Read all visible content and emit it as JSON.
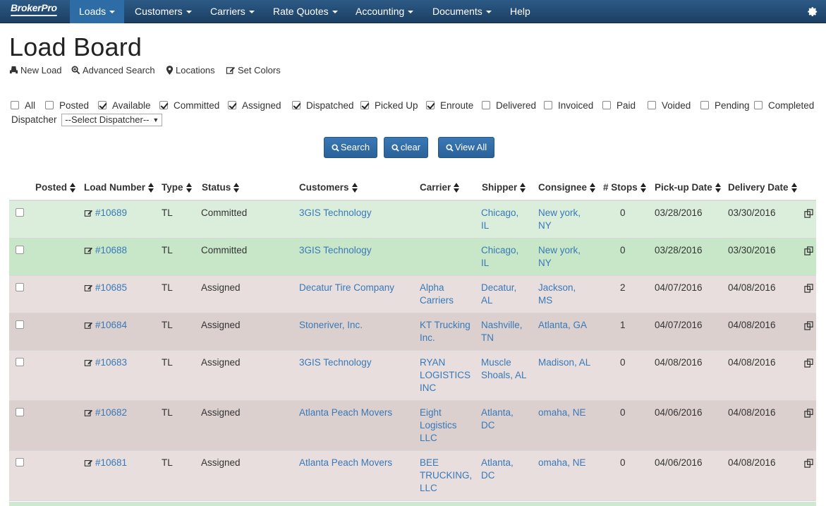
{
  "nav": {
    "brand": "BrokerPro",
    "items": [
      {
        "label": "Loads",
        "caret": true,
        "active": true
      },
      {
        "label": "Customers",
        "caret": true
      },
      {
        "label": "Carriers",
        "caret": true
      },
      {
        "label": "Rate Quotes",
        "caret": true
      },
      {
        "label": "Accounting",
        "caret": true
      },
      {
        "label": "Documents",
        "caret": true
      },
      {
        "label": "Help",
        "caret": false
      }
    ],
    "settings_icon": "gear-icon"
  },
  "page": {
    "title": "Load Board",
    "actions": [
      {
        "label": "New Load",
        "icon": "truck-icon"
      },
      {
        "label": "Advanced Search",
        "icon": "search-plus-icon"
      },
      {
        "label": "Locations",
        "icon": "map-marker-icon"
      },
      {
        "label": "Set Colors",
        "icon": "edit-icon"
      }
    ]
  },
  "filters": {
    "statuses": [
      {
        "label": "All",
        "checked": false
      },
      {
        "label": "Posted",
        "checked": false
      },
      {
        "label": "Available",
        "checked": true
      },
      {
        "label": "Committed",
        "checked": true
      },
      {
        "label": "Assigned",
        "checked": true
      },
      {
        "label": "Dispatched",
        "checked": true
      },
      {
        "label": "Picked Up",
        "checked": true
      },
      {
        "label": "Enroute",
        "checked": true
      },
      {
        "label": "Delivered",
        "checked": false
      },
      {
        "label": "Invoiced",
        "checked": false
      },
      {
        "label": "Paid",
        "checked": false
      },
      {
        "label": "Voided",
        "checked": false
      },
      {
        "label": "Pending",
        "checked": false
      },
      {
        "label": "Completed",
        "checked": false
      }
    ],
    "dispatcher_label": "Dispatcher",
    "dispatcher_value": "--Select Dispatcher--"
  },
  "buttons": {
    "search": "Search",
    "clear": "clear",
    "view_all": "View All"
  },
  "table": {
    "headers": [
      "Posted",
      "Load Number",
      "Type",
      "Status",
      "Customers",
      "Carrier",
      "Shipper",
      "Consignee",
      "# Stops",
      "Pick-up Date",
      "Delivery Date"
    ],
    "rows": [
      {
        "load": "#10689",
        "type": "TL",
        "status": "Committed",
        "customer": "3GIS Technology",
        "carrier": [],
        "shipper": [
          "Chicago,",
          "IL"
        ],
        "consignee": [
          "New york,",
          "NY"
        ],
        "stops": "0",
        "pickup": "03/28/2016",
        "delivery": "03/30/2016",
        "bg": "#dbeedb"
      },
      {
        "load": "#10688",
        "type": "TL",
        "status": "Committed",
        "customer": "3GIS Technology",
        "carrier": [],
        "shipper": [
          "Chicago,",
          "IL"
        ],
        "consignee": [
          "New york,",
          "NY"
        ],
        "stops": "0",
        "pickup": "03/28/2016",
        "delivery": "03/30/2016",
        "bg": "#c8e6c8"
      },
      {
        "load": "#10685",
        "type": "TL",
        "status": "Assigned",
        "customer": "Decatur Tire Company",
        "carrier": [
          "Alpha",
          "Carriers"
        ],
        "shipper": [
          "Decatur,",
          "AL"
        ],
        "consignee": [
          "Jackson,",
          "MS"
        ],
        "stops": "2",
        "pickup": "04/07/2016",
        "delivery": "04/08/2016",
        "bg": "#e8dedd"
      },
      {
        "load": "#10684",
        "type": "TL",
        "status": "Assigned",
        "customer": "Stoneriver, Inc.",
        "carrier": [
          "KT Trucking",
          "Inc."
        ],
        "shipper": [
          "Nashville,",
          "TN"
        ],
        "consignee": [
          "Atlanta, GA"
        ],
        "stops": "1",
        "pickup": "04/07/2016",
        "delivery": "04/08/2016",
        "bg": "#dcd0cf"
      },
      {
        "load": "#10683",
        "type": "TL",
        "status": "Assigned",
        "customer": "3GIS Technology",
        "carrier": [
          "RYAN",
          "LOGISTICS",
          "INC"
        ],
        "shipper": [
          "Muscle",
          "Shoals, AL"
        ],
        "consignee": [
          "Madison, AL"
        ],
        "stops": "0",
        "pickup": "04/08/2016",
        "delivery": "04/08/2016",
        "bg": "#e8dedd"
      },
      {
        "load": "#10682",
        "type": "TL",
        "status": "Assigned",
        "customer": "Atlanta Peach Movers",
        "carrier": [
          "Eight",
          "Logistics",
          "LLC"
        ],
        "shipper": [
          "Atlanta,",
          "DC"
        ],
        "consignee": [
          "omaha, NE"
        ],
        "stops": "0",
        "pickup": "04/06/2016",
        "delivery": "04/08/2016",
        "bg": "#dcd0cf"
      },
      {
        "load": "#10681",
        "type": "TL",
        "status": "Assigned",
        "customer": "Atlanta Peach Movers",
        "carrier": [
          "BEE",
          "TRUCKING,",
          "LLC"
        ],
        "shipper": [
          "Atlanta,",
          "DC"
        ],
        "consignee": [
          "omaha, NE"
        ],
        "stops": "0",
        "pickup": "04/06/2016",
        "delivery": "04/08/2016",
        "bg": "#e8dedd"
      }
    ]
  }
}
